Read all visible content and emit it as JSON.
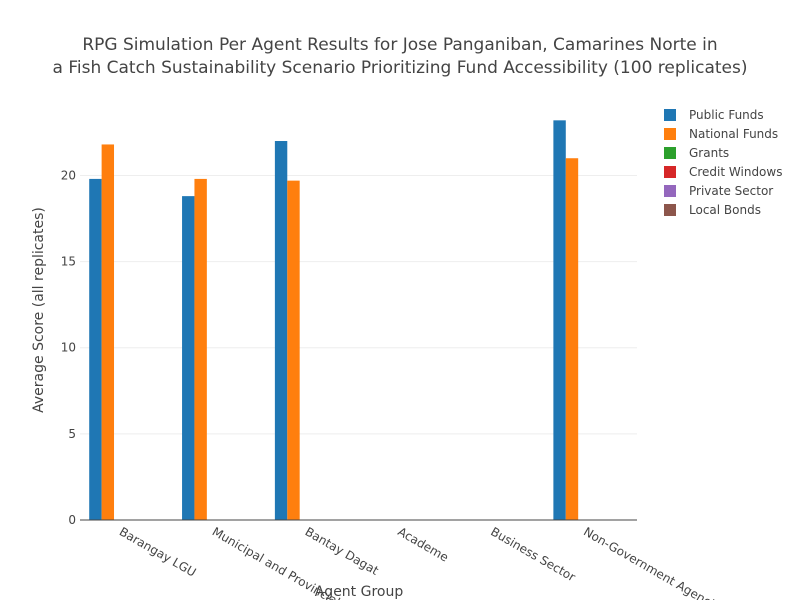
{
  "chart_data": {
    "type": "bar",
    "title_lines": [
      "RPG Simulation Per Agent Results for Jose Panganiban, Camarines Norte in",
      "a Fish Catch Sustainability Scenario Prioritizing Fund Accessibility (100 replicates)"
    ],
    "xlabel": "Agent Group",
    "ylabel": "Average Score (all replicates)",
    "ylim": [
      0,
      23.8
    ],
    "yticks": [
      0,
      5,
      10,
      15,
      20
    ],
    "grid": true,
    "legend_position": "top-right",
    "categories": [
      "Barangay LGU",
      "Municipal and Provincial LGU",
      "Bantay Dagat",
      "Academe",
      "Business Sector",
      "Non-Government Agencies"
    ],
    "series": [
      {
        "name": "Public Funds",
        "color": "#1f77b4",
        "values": [
          19.8,
          18.8,
          22.0,
          null,
          null,
          23.2
        ]
      },
      {
        "name": "National Funds",
        "color": "#ff7f0e",
        "values": [
          21.8,
          19.8,
          19.7,
          null,
          null,
          21.0
        ]
      },
      {
        "name": "Grants",
        "color": "#2ca02c",
        "values": [
          null,
          null,
          null,
          null,
          null,
          null
        ]
      },
      {
        "name": "Credit Windows",
        "color": "#d62728",
        "values": [
          null,
          null,
          null,
          null,
          null,
          null
        ]
      },
      {
        "name": "Private Sector",
        "color": "#9467bd",
        "values": [
          null,
          null,
          null,
          null,
          null,
          null
        ]
      },
      {
        "name": "Local Bonds",
        "color": "#8c564b",
        "values": [
          null,
          null,
          null,
          null,
          null,
          null
        ]
      }
    ]
  }
}
